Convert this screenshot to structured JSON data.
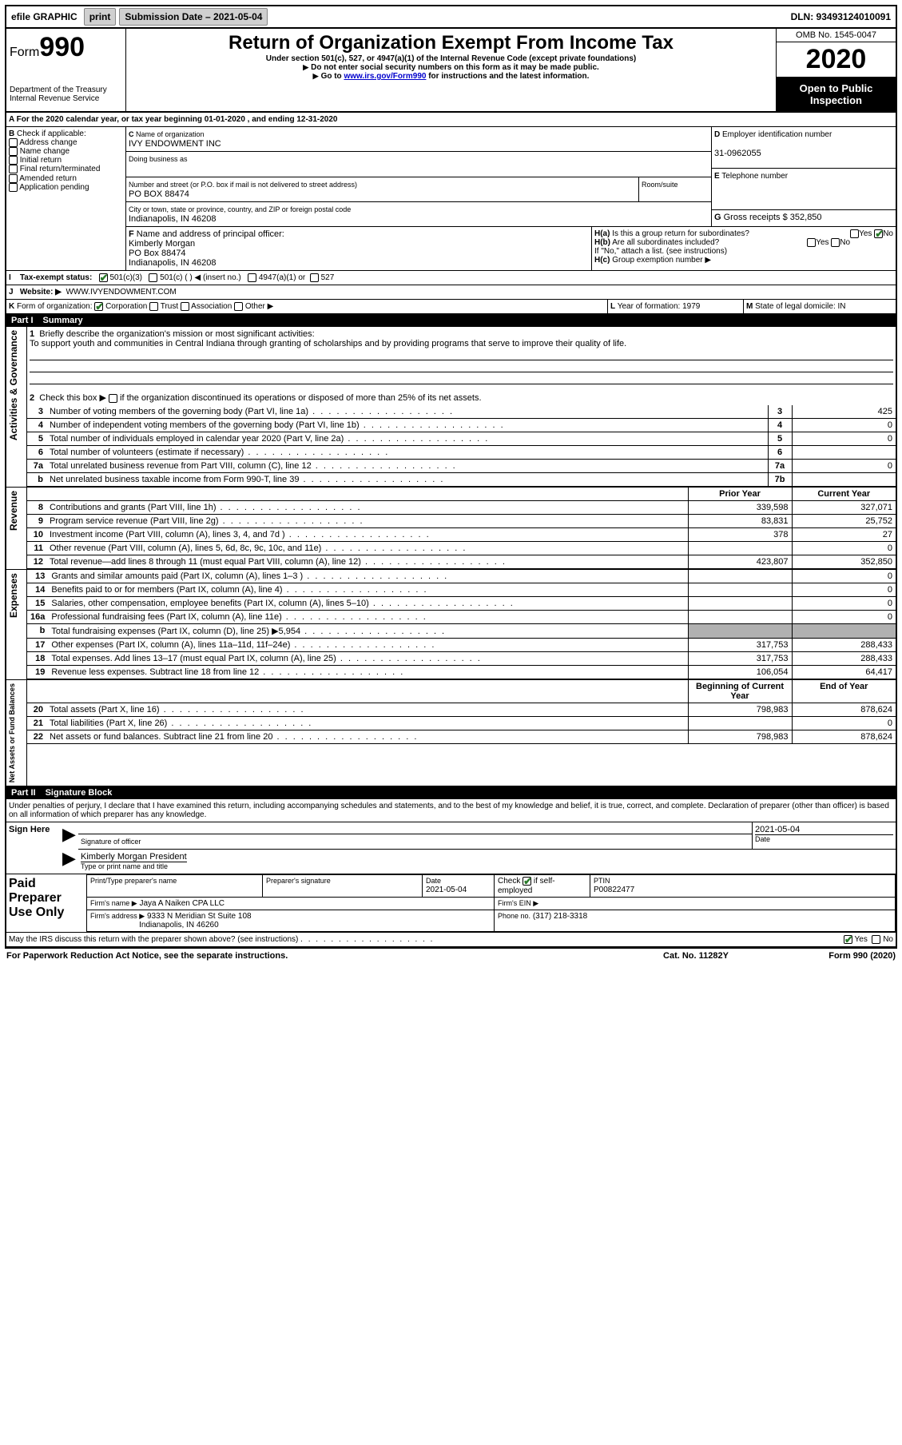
{
  "document_type": "form",
  "colors": {
    "text": "#000000",
    "background": "#ffffff",
    "link": "#0000cc",
    "grey_fill": "#b0b0b0",
    "button_bg": "#d0d0d0",
    "check_green": "#2a7a2a",
    "inverse_bg": "#000000",
    "inverse_text": "#ffffff"
  },
  "topbar": {
    "efile": "efile GRAPHIC",
    "print": "print",
    "sub_label": "Submission Date – 2021-05-04",
    "dln": "DLN: 93493124010091"
  },
  "header": {
    "form_word": "Form",
    "form_number": "990",
    "title": "Return of Organization Exempt From Income Tax",
    "subtitle": "Under section 501(c), 527, or 4947(a)(1) of the Internal Revenue Code (except private foundations)",
    "warn1": "Do not enter social security numbers on this form as it may be made public.",
    "warn2_pre": "Go to ",
    "warn2_link": "www.irs.gov/Form990",
    "warn2_post": " for instructions and the latest information.",
    "dept1": "Department of the Treasury",
    "dept2": "Internal Revenue Service",
    "omb": "OMB No. 1545-0047",
    "year": "2020",
    "inspect1": "Open to Public",
    "inspect2": "Inspection"
  },
  "lineA": "For the 2020 calendar year, or tax year beginning 01-01-2020     , and ending 12-31-2020",
  "sectionB": {
    "label": "Check if applicable:",
    "opts": [
      "Address change",
      "Name change",
      "Initial return",
      "Final return/terminated",
      "Amended return",
      "Application pending"
    ]
  },
  "sectionC": {
    "name_label": "Name of organization",
    "name": "IVY ENDOWMENT INC",
    "dba_label": "Doing business as",
    "addr_label": "Number and street (or P.O. box if mail is not delivered to street address)",
    "room_label": "Room/suite",
    "addr": "PO BOX 88474",
    "city_label": "City or town, state or province, country, and ZIP or foreign postal code",
    "city": "Indianapolis, IN  46208"
  },
  "sectionD": {
    "label": "Employer identification number",
    "value": "31-0962055"
  },
  "sectionE": {
    "label": "Telephone number",
    "value": ""
  },
  "sectionG": {
    "label": "Gross receipts $",
    "value": "352,850"
  },
  "sectionF": {
    "label": "Name and address of principal officer:",
    "name": "Kimberly Morgan",
    "addr1": "PO Box 88474",
    "addr2": "Indianapolis, IN  46208"
  },
  "sectionH": {
    "a": "Is this a group return for subordinates?",
    "b": "Are all subordinates included?",
    "b_note": "If \"No,\" attach a list. (see instructions)",
    "c": "Group exemption number ▶",
    "yes": "Yes",
    "no": "No"
  },
  "sectionI": {
    "label": "Tax-exempt status:",
    "opts": [
      "501(c)(3)",
      "501(c) (   ) ◀ (insert no.)",
      "4947(a)(1) or",
      "527"
    ]
  },
  "sectionJ": {
    "label": "Website: ▶",
    "value": "WWW.IVYENDOWMENT.COM"
  },
  "sectionK": {
    "label": "Form of organization:",
    "opts": [
      "Corporation",
      "Trust",
      "Association",
      "Other ▶"
    ]
  },
  "sectionL": {
    "label": "Year of formation:",
    "value": "1979"
  },
  "sectionM": {
    "label": "State of legal domicile:",
    "value": "IN"
  },
  "part1": {
    "title": "Part I",
    "name": "Summary",
    "side_ag": "Activities & Governance",
    "side_rev": "Revenue",
    "side_exp": "Expenses",
    "side_na": "Net Assets or Fund Balances",
    "l1_label": "Briefly describe the organization's mission or most significant activities:",
    "l1_text": "To support youth and communities in Central Indiana through granting of scholarships and by providing programs that serve to improve their quality of life.",
    "l2": "Check this box ▶        if the organization discontinued its operations or disposed of more than 25% of its net assets.",
    "lines_ag": [
      {
        "n": "3",
        "t": "Number of voting members of the governing body (Part VI, line 1a)",
        "box": "3",
        "v": "425"
      },
      {
        "n": "4",
        "t": "Number of independent voting members of the governing body (Part VI, line 1b)",
        "box": "4",
        "v": "0"
      },
      {
        "n": "5",
        "t": "Total number of individuals employed in calendar year 2020 (Part V, line 2a)",
        "box": "5",
        "v": "0"
      },
      {
        "n": "6",
        "t": "Total number of volunteers (estimate if necessary)",
        "box": "6",
        "v": ""
      },
      {
        "n": "7a",
        "t": "Total unrelated business revenue from Part VIII, column (C), line 12",
        "box": "7a",
        "v": "0"
      },
      {
        "n": "b",
        "t": "Net unrelated business taxable income from Form 990-T, line 39",
        "box": "7b",
        "v": ""
      }
    ],
    "col_py": "Prior Year",
    "col_cy": "Current Year",
    "lines_rev": [
      {
        "n": "8",
        "t": "Contributions and grants (Part VIII, line 1h)",
        "py": "339,598",
        "cy": "327,071"
      },
      {
        "n": "9",
        "t": "Program service revenue (Part VIII, line 2g)",
        "py": "83,831",
        "cy": "25,752"
      },
      {
        "n": "10",
        "t": "Investment income (Part VIII, column (A), lines 3, 4, and 7d )",
        "py": "378",
        "cy": "27"
      },
      {
        "n": "11",
        "t": "Other revenue (Part VIII, column (A), lines 5, 6d, 8c, 9c, 10c, and 11e)",
        "py": "",
        "cy": "0"
      },
      {
        "n": "12",
        "t": "Total revenue—add lines 8 through 11 (must equal Part VIII, column (A), line 12)",
        "py": "423,807",
        "cy": "352,850"
      }
    ],
    "lines_exp": [
      {
        "n": "13",
        "t": "Grants and similar amounts paid (Part IX, column (A), lines 1–3 )",
        "py": "",
        "cy": "0"
      },
      {
        "n": "14",
        "t": "Benefits paid to or for members (Part IX, column (A), line 4)",
        "py": "",
        "cy": "0"
      },
      {
        "n": "15",
        "t": "Salaries, other compensation, employee benefits (Part IX, column (A), lines 5–10)",
        "py": "",
        "cy": "0"
      },
      {
        "n": "16a",
        "t": "Professional fundraising fees (Part IX, column (A), line 11e)",
        "py": "",
        "cy": "0"
      },
      {
        "n": "b",
        "t": "Total fundraising expenses (Part IX, column (D), line 25) ▶5,954",
        "py": "GREY",
        "cy": "GREY"
      },
      {
        "n": "17",
        "t": "Other expenses (Part IX, column (A), lines 11a–11d, 11f–24e)",
        "py": "317,753",
        "cy": "288,433"
      },
      {
        "n": "18",
        "t": "Total expenses. Add lines 13–17 (must equal Part IX, column (A), line 25)",
        "py": "317,753",
        "cy": "288,433"
      },
      {
        "n": "19",
        "t": "Revenue less expenses. Subtract line 18 from line 12",
        "py": "106,054",
        "cy": "64,417"
      }
    ],
    "col_boy": "Beginning of Current Year",
    "col_eoy": "End of Year",
    "lines_na": [
      {
        "n": "20",
        "t": "Total assets (Part X, line 16)",
        "py": "798,983",
        "cy": "878,624"
      },
      {
        "n": "21",
        "t": "Total liabilities (Part X, line 26)",
        "py": "",
        "cy": "0"
      },
      {
        "n": "22",
        "t": "Net assets or fund balances. Subtract line 21 from line 20",
        "py": "798,983",
        "cy": "878,624"
      }
    ]
  },
  "part2": {
    "title": "Part II",
    "name": "Signature Block",
    "decl": "Under penalties of perjury, I declare that I have examined this return, including accompanying schedules and statements, and to the best of my knowledge and belief, it is true, correct, and complete. Declaration of preparer (other than officer) is based on all information of which preparer has any knowledge.",
    "sign_here": "Sign Here",
    "sig_officer": "Signature of officer",
    "date_label": "Date",
    "date_val": "2021-05-04",
    "name_title": "Kimberly Morgan  President",
    "name_title_label": "Type or print name and title",
    "paid_prep": "Paid Preparer Use Only",
    "prep_name_label": "Print/Type preparer's name",
    "prep_sig_label": "Preparer's signature",
    "prep_date": "2021-05-04",
    "self_emp": "Check         if self-employed",
    "ptin_label": "PTIN",
    "ptin": "P00822477",
    "firm_name_label": "Firm's name    ▶",
    "firm_name": "Jaya A Naiken CPA LLC",
    "firm_ein_label": "Firm's EIN ▶",
    "firm_addr_label": "Firm's address ▶",
    "firm_addr1": "9333 N Meridian St Suite 108",
    "firm_addr2": "Indianapolis, IN  46260",
    "phone_label": "Phone no.",
    "phone": "(317) 218-3318",
    "discuss": "May the IRS discuss this return with the preparer shown above? (see instructions)"
  },
  "footer": {
    "pra": "For Paperwork Reduction Act Notice, see the separate instructions.",
    "cat": "Cat. No. 11282Y",
    "form": "Form 990 (2020)"
  }
}
